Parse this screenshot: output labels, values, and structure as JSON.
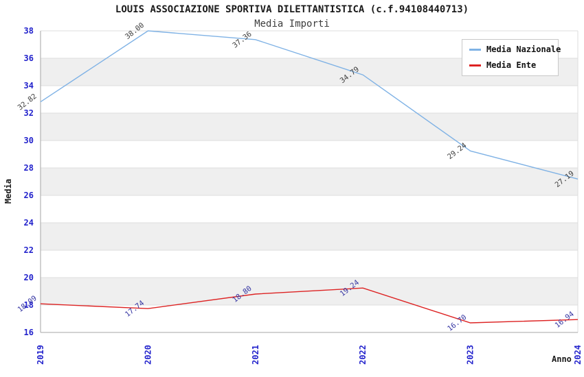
{
  "chart_data": {
    "type": "line",
    "title": "LOUIS ASSOCIAZIONE SPORTIVA DILETTANTISTICA (c.f.94108440713)",
    "subtitle": "Media Importi",
    "xlabel": "Anno",
    "ylabel": "Media",
    "x": [
      "2019",
      "2020",
      "2021",
      "2022",
      "2023",
      "2024"
    ],
    "ylim": [
      16,
      38
    ],
    "ytick_step": 2,
    "grid": true,
    "legend_position": "top-right",
    "series": [
      {
        "name": "Media Nazionale",
        "color": "#7fb2e5",
        "label_color": "#3d3d3d",
        "values": [
          32.82,
          38.0,
          37.36,
          34.79,
          29.24,
          27.19
        ],
        "labels": [
          "32.82",
          "38.00",
          "37.36",
          "34.79",
          "29.24",
          "27.19"
        ]
      },
      {
        "name": "Media Ente",
        "color": "#dd2222",
        "label_color": "#3434a2",
        "values": [
          18.09,
          17.74,
          18.8,
          19.24,
          16.7,
          16.94
        ],
        "labels": [
          "18.09",
          "17.74",
          "18.80",
          "19.24",
          "16.70",
          "16.94"
        ]
      }
    ],
    "colors": {
      "tick_label": "#2323cc",
      "grid_line": "#dcdcdc",
      "axis_line": "#a6a6a6",
      "band_fill": "#efefef",
      "plot_background": "#ffffff"
    }
  }
}
